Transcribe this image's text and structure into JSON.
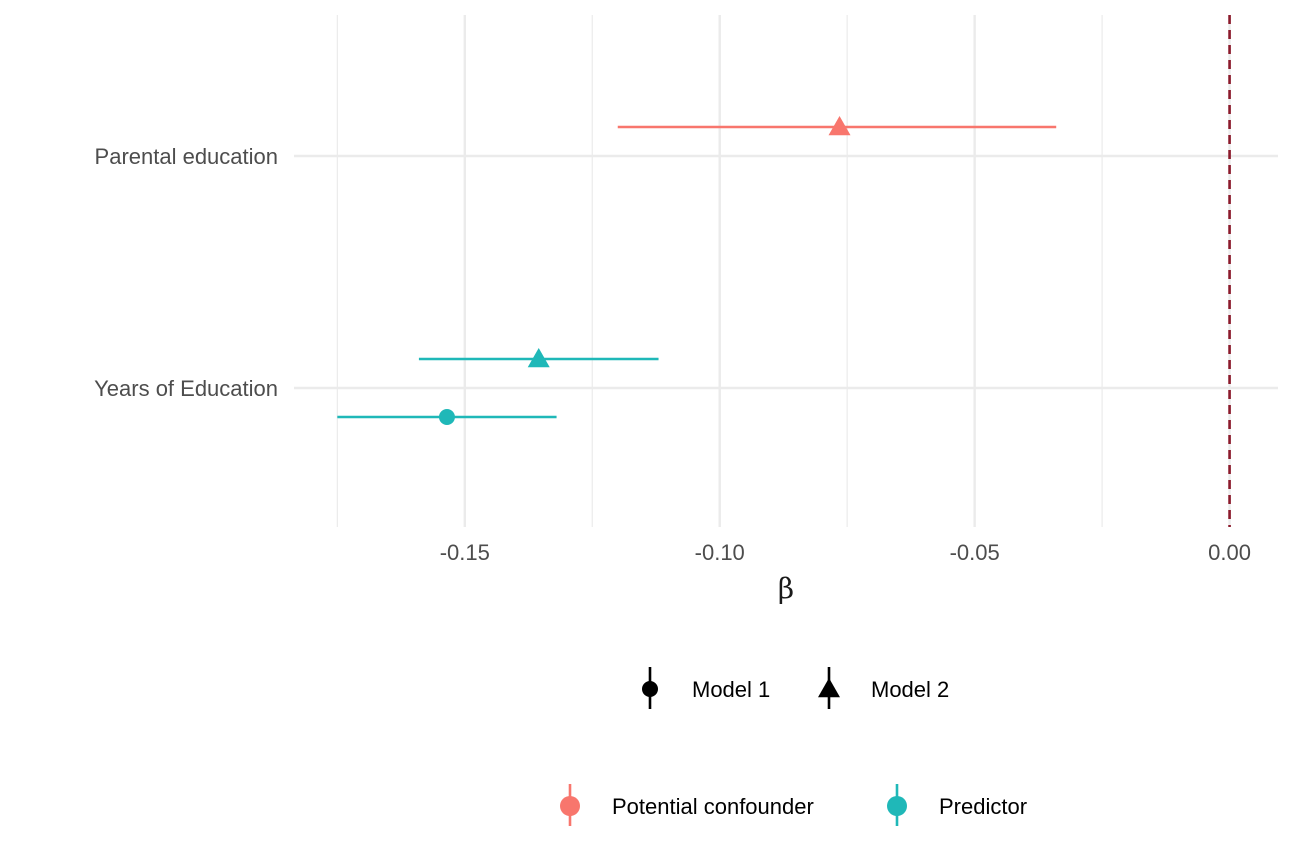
{
  "chart_data": {
    "type": "forest",
    "xlabel": "β",
    "xlim": [
      -0.1835,
      0.0095
    ],
    "x_ticks": [
      {
        "value": -0.15,
        "label": "-0.15"
      },
      {
        "value": -0.1,
        "label": "-0.10"
      },
      {
        "value": -0.05,
        "label": "-0.05"
      },
      {
        "value": 0.0,
        "label": "0.00"
      }
    ],
    "x_minor_ticks": [
      -0.175,
      -0.125,
      -0.075,
      -0.025
    ],
    "reference_line": {
      "value": 0.0,
      "color": "#8B1A2B",
      "style": "dashed"
    },
    "categories": [
      "Parental education",
      "Years of Education"
    ],
    "grid": true,
    "points": [
      {
        "category": "Parental education",
        "model": "Model 2",
        "group": "Potential confounder",
        "estimate": -0.0765,
        "ci_low": -0.12,
        "ci_high": -0.034
      },
      {
        "category": "Years of Education",
        "model": "Model 2",
        "group": "Predictor",
        "estimate": -0.1355,
        "ci_low": -0.159,
        "ci_high": -0.112
      },
      {
        "category": "Years of Education",
        "model": "Model 1",
        "group": "Predictor",
        "estimate": -0.1535,
        "ci_low": -0.175,
        "ci_high": -0.132
      }
    ],
    "shape_legend": {
      "position": "bottom",
      "items": [
        {
          "label": "Model 1",
          "shape": "circle"
        },
        {
          "label": "Model 2",
          "shape": "triangle"
        }
      ]
    },
    "color_legend": {
      "position": "bottom",
      "items": [
        {
          "label": "Potential confounder",
          "color": "#F8766D"
        },
        {
          "label": "Predictor",
          "color": "#1FB8B8"
        }
      ]
    }
  }
}
